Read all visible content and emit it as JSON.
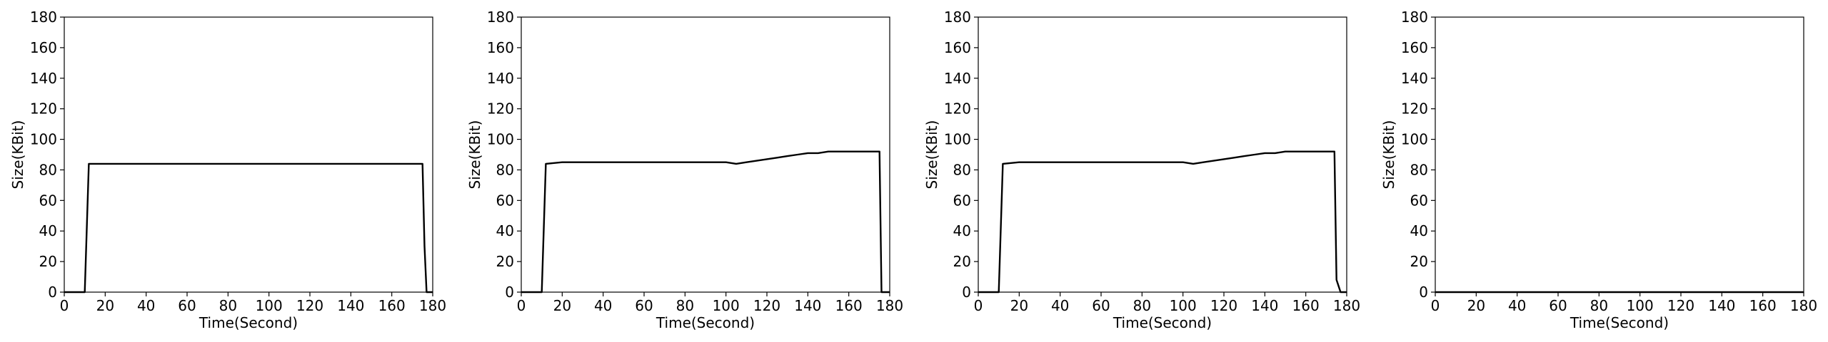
{
  "chart_data": [
    {
      "type": "line",
      "xlabel": "Time(Second)",
      "ylabel": "Size(KBit)",
      "xlim": [
        0,
        180
      ],
      "ylim": [
        0,
        180
      ],
      "xticks": [
        0,
        20,
        40,
        60,
        80,
        100,
        120,
        140,
        160,
        180
      ],
      "yticks": [
        0,
        20,
        40,
        60,
        80,
        100,
        120,
        140,
        160,
        180
      ],
      "grid": false,
      "series": [
        {
          "color": "#000000",
          "x": [
            0,
            10,
            12,
            20,
            40,
            60,
            80,
            100,
            120,
            140,
            160,
            175,
            176,
            177,
            180
          ],
          "y": [
            0,
            0,
            84,
            84,
            84,
            84,
            84,
            84,
            84,
            84,
            84,
            84,
            30,
            0,
            0
          ]
        }
      ]
    },
    {
      "type": "line",
      "xlabel": "Time(Second)",
      "ylabel": "Size(KBit)",
      "xlim": [
        0,
        180
      ],
      "ylim": [
        0,
        180
      ],
      "xticks": [
        0,
        20,
        40,
        60,
        80,
        100,
        120,
        140,
        160,
        180
      ],
      "yticks": [
        0,
        20,
        40,
        60,
        80,
        100,
        120,
        140,
        160,
        180
      ],
      "grid": false,
      "series": [
        {
          "color": "#000000",
          "x": [
            0,
            10,
            12,
            20,
            30,
            40,
            50,
            60,
            70,
            80,
            90,
            100,
            105,
            110,
            115,
            120,
            125,
            130,
            135,
            140,
            145,
            150,
            155,
            160,
            165,
            170,
            175,
            176,
            177,
            180
          ],
          "y": [
            0,
            0,
            84,
            85,
            85,
            85,
            85,
            85,
            85,
            85,
            85,
            85,
            84,
            85,
            86,
            87,
            88,
            89,
            90,
            91,
            91,
            92,
            92,
            92,
            92,
            92,
            92,
            0,
            0,
            0
          ]
        }
      ]
    },
    {
      "type": "line",
      "xlabel": "Time(Second)",
      "ylabel": "Size(KBit)",
      "xlim": [
        0,
        180
      ],
      "ylim": [
        0,
        180
      ],
      "xticks": [
        0,
        20,
        40,
        60,
        80,
        100,
        120,
        140,
        160,
        180
      ],
      "yticks": [
        0,
        20,
        40,
        60,
        80,
        100,
        120,
        140,
        160,
        180
      ],
      "grid": false,
      "series": [
        {
          "color": "#000000",
          "x": [
            0,
            10,
            12,
            20,
            30,
            40,
            50,
            60,
            70,
            80,
            90,
            100,
            105,
            110,
            115,
            120,
            125,
            130,
            135,
            140,
            145,
            150,
            155,
            160,
            165,
            170,
            174,
            175,
            177,
            180
          ],
          "y": [
            0,
            0,
            84,
            85,
            85,
            85,
            85,
            85,
            85,
            85,
            85,
            85,
            84,
            85,
            86,
            87,
            88,
            89,
            90,
            91,
            91,
            92,
            92,
            92,
            92,
            92,
            92,
            8,
            0,
            0
          ]
        }
      ]
    },
    {
      "type": "line",
      "xlabel": "Time(Second)",
      "ylabel": "Size(KBit)",
      "xlim": [
        0,
        180
      ],
      "ylim": [
        0,
        180
      ],
      "xticks": [
        0,
        20,
        40,
        60,
        80,
        100,
        120,
        140,
        160,
        180
      ],
      "yticks": [
        0,
        20,
        40,
        60,
        80,
        100,
        120,
        140,
        160,
        180
      ],
      "grid": false,
      "series": [
        {
          "color": "#000000",
          "x": [
            0,
            180
          ],
          "y": [
            0,
            0
          ]
        }
      ]
    }
  ]
}
